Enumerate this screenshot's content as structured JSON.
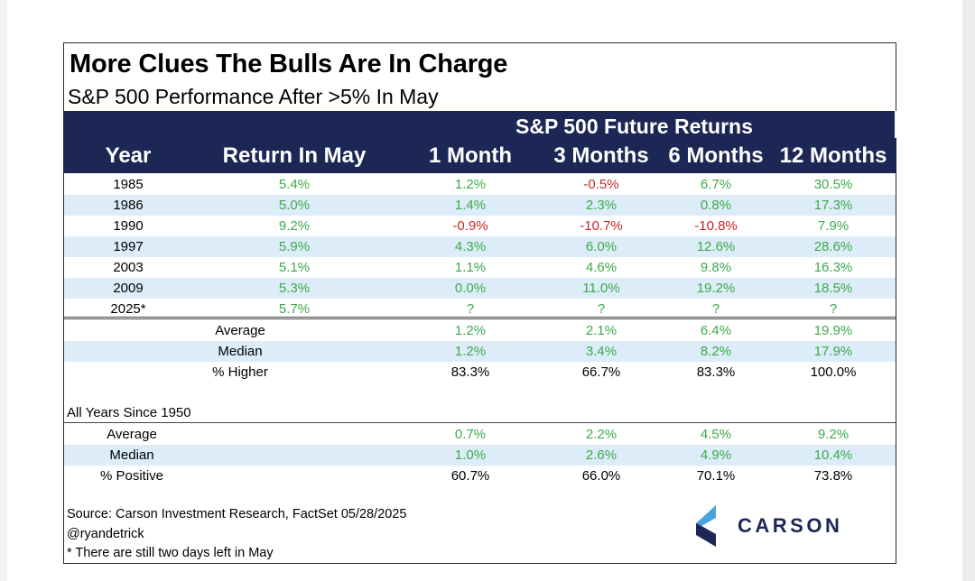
{
  "title": "More Clues The Bulls Are In Charge",
  "subtitle": "S&P 500 Performance After >5% In May",
  "header": {
    "group_label": "S&P 500 Future Returns",
    "columns": [
      "Year",
      "Return In May",
      "1 Month",
      "3 Months",
      "6 Months",
      "12 Months"
    ]
  },
  "rows": [
    {
      "year": "1985",
      "may": "5.4%",
      "m1": "1.2%",
      "m3": "-0.5%",
      "m6": "6.7%",
      "m12": "30.5%"
    },
    {
      "year": "1986",
      "may": "5.0%",
      "m1": "1.4%",
      "m3": "2.3%",
      "m6": "0.8%",
      "m12": "17.3%"
    },
    {
      "year": "1990",
      "may": "9.2%",
      "m1": "-0.9%",
      "m3": "-10.7%",
      "m6": "-10.8%",
      "m12": "7.9%"
    },
    {
      "year": "1997",
      "may": "5.9%",
      "m1": "4.3%",
      "m3": "6.0%",
      "m6": "12.6%",
      "m12": "28.6%"
    },
    {
      "year": "2003",
      "may": "5.1%",
      "m1": "1.1%",
      "m3": "4.6%",
      "m6": "9.8%",
      "m12": "16.3%"
    },
    {
      "year": "2009",
      "may": "5.3%",
      "m1": "0.0%",
      "m3": "11.0%",
      "m6": "19.2%",
      "m12": "18.5%"
    },
    {
      "year": "2025*",
      "may": "5.7%",
      "m1": "?",
      "m3": "?",
      "m6": "?",
      "m12": "?"
    }
  ],
  "summary": [
    {
      "label": "Average",
      "m1": "1.2%",
      "m3": "2.1%",
      "m6": "6.4%",
      "m12": "19.9%"
    },
    {
      "label": "Median",
      "m1": "1.2%",
      "m3": "3.4%",
      "m6": "8.2%",
      "m12": "17.9%"
    },
    {
      "label": "% Higher",
      "m1": "83.3%",
      "m3": "66.7%",
      "m6": "83.3%",
      "m12": "100.0%"
    }
  ],
  "all_years": {
    "label": "All Years Since 1950",
    "rows": [
      {
        "label": "Average",
        "m1": "0.7%",
        "m3": "2.2%",
        "m6": "4.5%",
        "m12": "9.2%"
      },
      {
        "label": "Median",
        "m1": "1.0%",
        "m3": "2.6%",
        "m6": "4.9%",
        "m12": "10.4%"
      },
      {
        "label": "% Positive",
        "m1": "60.7%",
        "m3": "66.0%",
        "m6": "70.1%",
        "m12": "73.8%"
      }
    ]
  },
  "footer": {
    "source": "Source: Carson Investment Research, FactSet 05/28/2025",
    "handle": "@ryandetrick",
    "note": "* There are still two days left in May"
  },
  "logo": {
    "name": "CARSON",
    "icon": "carson-chevron-logo-icon"
  },
  "colors": {
    "header_bg": "#1c2755",
    "shade": "#dcecf8",
    "positive": "#3daa4a",
    "negative": "#c62828",
    "logo_light": "#4aa3df"
  }
}
